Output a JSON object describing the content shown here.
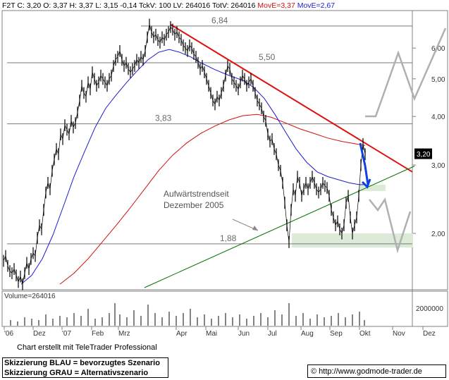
{
  "header": {
    "symbol": "F2T",
    "close": "C: 3,20",
    "open": "O: 3,37",
    "high": "H: 3,37",
    "low": "L: 3,15",
    "change": "-0,14",
    "tick_volume": "TckV: 100",
    "last_volume": "LV: 264016",
    "total_volume": "TotV: 264016",
    "move_e_red": "MovE=3,37",
    "move_e_blue": "MovE=2,67"
  },
  "colors": {
    "price": "#000000",
    "ma_red": "#d01010",
    "ma_blue": "#1c1cd0",
    "resistance": "#e01010",
    "uptrend": "#007000",
    "scenario_blue": "#1040e0",
    "scenario_gray": "#b0b0b0",
    "zone": "#dcebd8"
  },
  "volume_label": "Volume=264016",
  "credit": "Chart erstellt mit TeleTrader Professional",
  "legend": {
    "blue": "Skizzierung BLAU = bevorzugtes Szenario",
    "gray": "Skizzierung GRAU = Alternativszenario"
  },
  "source": "© http://www.godmode-trader.de",
  "chart_data": {
    "type": "line",
    "y_scale": "log",
    "ylim": [
      1.45,
      7.4
    ],
    "price_tick_labels": [
      "6,00",
      "5,00",
      "4,00",
      "3,00",
      "2,00"
    ],
    "price_tick_values": [
      6.0,
      5.0,
      4.0,
      3.0,
      2.0
    ],
    "last_price_label": "3,20",
    "last_price": 3.2,
    "volume_tick_label": "2000000",
    "volume_tick_value": 2000000,
    "x_tick_labels": [
      "'06",
      "Dez",
      "'07",
      "Feb",
      "Mrz",
      "Apr",
      "Mai",
      "Jun",
      "Jul",
      "Aug",
      "Sep",
      "Okt",
      "Nov",
      "Dez"
    ],
    "horizontal_levels": [
      {
        "label": "6,84",
        "value": 6.84
      },
      {
        "label": "5,50",
        "value": 5.5
      },
      {
        "label": "3,83",
        "value": 3.83
      },
      {
        "label": "1,88",
        "value": 1.88
      }
    ],
    "annotation": {
      "line1": "Aufwärtstrendseit",
      "line2": "Dezember 2005"
    },
    "price_series": [
      [
        0,
        1.7
      ],
      [
        3,
        1.75
      ],
      [
        6,
        1.65
      ],
      [
        9,
        1.6
      ],
      [
        12,
        1.58
      ],
      [
        15,
        1.62
      ],
      [
        18,
        1.56
      ],
      [
        21,
        1.5
      ],
      [
        24,
        1.55
      ],
      [
        27,
        1.48
      ],
      [
        30,
        1.58
      ],
      [
        33,
        1.68
      ],
      [
        36,
        1.62
      ],
      [
        39,
        1.72
      ],
      [
        42,
        1.78
      ],
      [
        45,
        1.75
      ],
      [
        48,
        1.95
      ],
      [
        51,
        2.1
      ],
      [
        54,
        2.05
      ],
      [
        57,
        2.3
      ],
      [
        60,
        2.55
      ],
      [
        63,
        2.7
      ],
      [
        66,
        2.6
      ],
      [
        69,
        2.9
      ],
      [
        72,
        3.1
      ],
      [
        75,
        3.3
      ],
      [
        78,
        3.2
      ],
      [
        81,
        3.6
      ],
      [
        84,
        3.5
      ],
      [
        87,
        3.8
      ],
      [
        90,
        3.7
      ],
      [
        93,
        3.6
      ],
      [
        96,
        3.9
      ],
      [
        99,
        3.75
      ],
      [
        102,
        3.85
      ],
      [
        105,
        4.1
      ],
      [
        108,
        4.4
      ],
      [
        111,
        4.8
      ],
      [
        114,
        4.6
      ],
      [
        117,
        4.5
      ],
      [
        120,
        4.9
      ],
      [
        123,
        4.7
      ],
      [
        126,
        5.2
      ],
      [
        129,
        5.0
      ],
      [
        132,
        4.8
      ],
      [
        135,
        4.9
      ],
      [
        138,
        5.1
      ],
      [
        141,
        5.0
      ],
      [
        144,
        4.9
      ],
      [
        147,
        4.8
      ],
      [
        150,
        5.0
      ],
      [
        153,
        5.1
      ],
      [
        156,
        5.4
      ],
      [
        159,
        5.6
      ],
      [
        162,
        5.7
      ],
      [
        165,
        5.9
      ],
      [
        168,
        5.6
      ],
      [
        171,
        5.4
      ],
      [
        174,
        5.5
      ],
      [
        177,
        5.3
      ],
      [
        180,
        5.2
      ],
      [
        183,
        5.3
      ],
      [
        186,
        5.4
      ],
      [
        189,
        5.6
      ],
      [
        192,
        5.5
      ],
      [
        195,
        5.7
      ],
      [
        198,
        5.6
      ],
      [
        201,
        5.9
      ],
      [
        204,
        6.4
      ],
      [
        207,
        6.9
      ],
      [
        210,
        6.6
      ],
      [
        213,
        6.4
      ],
      [
        216,
        6.5
      ],
      [
        219,
        6.3
      ],
      [
        222,
        6.2
      ],
      [
        225,
        6.4
      ],
      [
        228,
        6.3
      ],
      [
        231,
        6.5
      ],
      [
        234,
        6.6
      ],
      [
        237,
        6.8
      ],
      [
        240,
        6.7
      ],
      [
        243,
        6.5
      ],
      [
        246,
        6.6
      ],
      [
        249,
        6.4
      ],
      [
        252,
        6.3
      ],
      [
        255,
        6.1
      ],
      [
        258,
        6.0
      ],
      [
        261,
        5.9
      ],
      [
        264,
        6.1
      ],
      [
        267,
        6.0
      ],
      [
        270,
        5.8
      ],
      [
        273,
        5.7
      ],
      [
        276,
        5.5
      ],
      [
        279,
        5.3
      ],
      [
        282,
        5.4
      ],
      [
        285,
        5.2
      ],
      [
        288,
        5.0
      ],
      [
        291,
        4.8
      ],
      [
        294,
        4.6
      ],
      [
        297,
        4.4
      ],
      [
        300,
        4.3
      ],
      [
        303,
        4.5
      ],
      [
        306,
        4.4
      ],
      [
        309,
        4.6
      ],
      [
        312,
        4.8
      ],
      [
        315,
        5.1
      ],
      [
        318,
        5.4
      ],
      [
        321,
        5.3
      ],
      [
        324,
        5.0
      ],
      [
        327,
        4.9
      ],
      [
        330,
        4.8
      ],
      [
        333,
        4.7
      ],
      [
        336,
        4.9
      ],
      [
        339,
        5.1
      ],
      [
        342,
        5.0
      ],
      [
        345,
        4.8
      ],
      [
        348,
        4.9
      ],
      [
        351,
        5.0
      ],
      [
        354,
        4.8
      ],
      [
        357,
        4.6
      ],
      [
        360,
        4.4
      ],
      [
        363,
        4.3
      ],
      [
        366,
        4.2
      ],
      [
        369,
        4.0
      ],
      [
        372,
        3.9
      ],
      [
        375,
        3.6
      ],
      [
        378,
        3.45
      ],
      [
        381,
        3.5
      ],
      [
        384,
        3.3
      ],
      [
        387,
        3.2
      ],
      [
        390,
        3.0
      ],
      [
        393,
        2.9
      ],
      [
        396,
        2.7
      ],
      [
        399,
        2.4
      ],
      [
        402,
        2.1
      ],
      [
        405,
        1.9
      ],
      [
        408,
        2.3
      ],
      [
        411,
        2.6
      ],
      [
        414,
        2.5
      ],
      [
        417,
        2.8
      ],
      [
        420,
        2.7
      ],
      [
        423,
        2.5
      ],
      [
        426,
        2.6
      ],
      [
        429,
        2.7
      ],
      [
        432,
        2.6
      ],
      [
        435,
        2.7
      ],
      [
        438,
        2.8
      ],
      [
        441,
        2.7
      ],
      [
        444,
        2.6
      ],
      [
        447,
        2.55
      ],
      [
        450,
        2.6
      ],
      [
        453,
        2.7
      ],
      [
        456,
        2.65
      ],
      [
        459,
        2.62
      ],
      [
        462,
        2.5
      ],
      [
        465,
        2.3
      ],
      [
        468,
        2.2
      ],
      [
        471,
        2.1
      ],
      [
        474,
        2.15
      ],
      [
        477,
        2.05
      ],
      [
        480,
        2.0
      ],
      [
        483,
        2.1
      ],
      [
        486,
        2.4
      ],
      [
        489,
        2.5
      ],
      [
        492,
        2.2
      ],
      [
        495,
        2.0
      ],
      [
        498,
        2.1
      ],
      [
        501,
        2.2
      ],
      [
        504,
        2.5
      ],
      [
        507,
        3.0
      ],
      [
        510,
        3.4
      ],
      [
        513,
        3.2
      ]
    ],
    "ma_red_series": [
      [
        80,
        1.48
      ],
      [
        100,
        1.58
      ],
      [
        120,
        1.72
      ],
      [
        140,
        1.9
      ],
      [
        160,
        2.1
      ],
      [
        180,
        2.33
      ],
      [
        200,
        2.6
      ],
      [
        220,
        2.9
      ],
      [
        240,
        3.18
      ],
      [
        260,
        3.42
      ],
      [
        280,
        3.62
      ],
      [
        300,
        3.78
      ],
      [
        320,
        3.92
      ],
      [
        340,
        4.02
      ],
      [
        360,
        4.05
      ],
      [
        380,
        3.98
      ],
      [
        400,
        3.85
      ],
      [
        420,
        3.72
      ],
      [
        440,
        3.62
      ],
      [
        460,
        3.52
      ],
      [
        480,
        3.45
      ],
      [
        500,
        3.4
      ],
      [
        513,
        3.37
      ]
    ],
    "ma_blue_series": [
      [
        25,
        1.48
      ],
      [
        40,
        1.56
      ],
      [
        55,
        1.72
      ],
      [
        70,
        1.98
      ],
      [
        85,
        2.35
      ],
      [
        100,
        2.8
      ],
      [
        115,
        3.25
      ],
      [
        130,
        3.75
      ],
      [
        145,
        4.2
      ],
      [
        160,
        4.55
      ],
      [
        175,
        4.9
      ],
      [
        190,
        5.25
      ],
      [
        205,
        5.6
      ],
      [
        220,
        5.85
      ],
      [
        235,
        5.95
      ],
      [
        250,
        5.85
      ],
      [
        265,
        5.7
      ],
      [
        280,
        5.5
      ],
      [
        300,
        5.28
      ],
      [
        320,
        5.1
      ],
      [
        340,
        4.95
      ],
      [
        355,
        4.75
      ],
      [
        370,
        4.45
      ],
      [
        385,
        4.05
      ],
      [
        400,
        3.65
      ],
      [
        415,
        3.3
      ],
      [
        430,
        3.05
      ],
      [
        445,
        2.88
      ],
      [
        460,
        2.8
      ],
      [
        475,
        2.75
      ],
      [
        490,
        2.7
      ],
      [
        505,
        2.67
      ],
      [
        513,
        2.67
      ]
    ],
    "resistance_line": [
      [
        237,
        6.9
      ],
      [
        580,
        2.88
      ]
    ],
    "uptrend_line": [
      [
        200,
        1.45
      ],
      [
        583,
        2.98
      ]
    ],
    "volume_series": [
      [
        10,
        0.4
      ],
      [
        20,
        0.3
      ],
      [
        30,
        0.6
      ],
      [
        40,
        0.5
      ],
      [
        50,
        0.4
      ],
      [
        60,
        0.8
      ],
      [
        70,
        0.5
      ],
      [
        80,
        0.7
      ],
      [
        90,
        0.6
      ],
      [
        100,
        0.9
      ],
      [
        110,
        0.7
      ],
      [
        120,
        1.2
      ],
      [
        130,
        0.5
      ],
      [
        140,
        0.6
      ],
      [
        150,
        0.9
      ],
      [
        158,
        1.6
      ],
      [
        165,
        0.8
      ],
      [
        175,
        0.6
      ],
      [
        185,
        1.1
      ],
      [
        195,
        0.7
      ],
      [
        205,
        1.5
      ],
      [
        215,
        0.9
      ],
      [
        225,
        0.6
      ],
      [
        235,
        1.0
      ],
      [
        245,
        0.7
      ],
      [
        255,
        0.9
      ],
      [
        265,
        1.2
      ],
      [
        275,
        0.6
      ],
      [
        285,
        0.8
      ],
      [
        295,
        0.5
      ],
      [
        305,
        0.7
      ],
      [
        315,
        0.9
      ],
      [
        325,
        0.6
      ],
      [
        335,
        0.8
      ],
      [
        345,
        0.5
      ],
      [
        355,
        0.7
      ],
      [
        365,
        0.9
      ],
      [
        375,
        0.6
      ],
      [
        385,
        1.1
      ],
      [
        395,
        0.8
      ],
      [
        405,
        1.6
      ],
      [
        415,
        0.7
      ],
      [
        425,
        0.9
      ],
      [
        435,
        0.5
      ],
      [
        445,
        0.8
      ],
      [
        455,
        0.6
      ],
      [
        465,
        0.7
      ],
      [
        475,
        0.9
      ],
      [
        485,
        0.6
      ],
      [
        495,
        0.8
      ],
      [
        505,
        1.0
      ],
      [
        512,
        0.4
      ]
    ]
  }
}
